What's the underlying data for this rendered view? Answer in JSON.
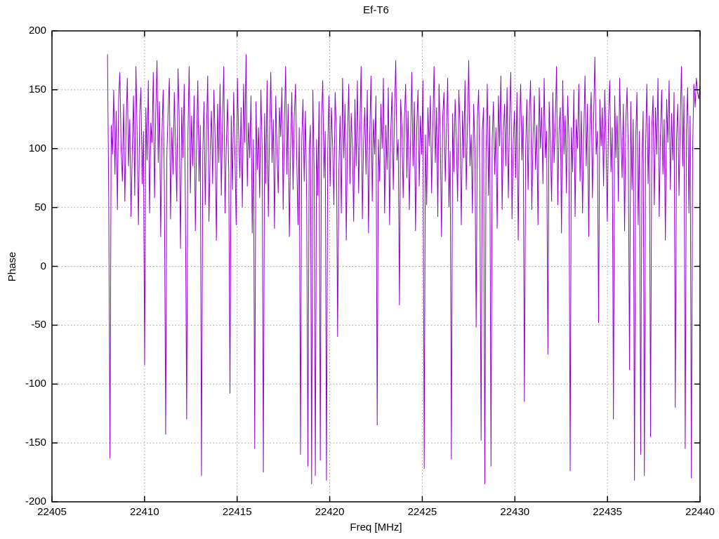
{
  "page": {
    "background": "#ffffff"
  },
  "chart_data": {
    "type": "line",
    "title": "Ef-T6",
    "xlabel": "Freq [MHz]",
    "ylabel": "Phase",
    "xlim": [
      22405,
      22440
    ],
    "ylim": [
      -200,
      200
    ],
    "xticks": [
      22405,
      22410,
      22415,
      22420,
      22425,
      22430,
      22435,
      22440
    ],
    "yticks": [
      -200,
      -150,
      -100,
      -50,
      0,
      50,
      100,
      150,
      200
    ],
    "grid": "dotted",
    "grid_color": "#9e9e9e",
    "border_color": "#000000",
    "legend": "none",
    "line_color": "#9400d3",
    "series": [
      {
        "name": "phase",
        "x_start": 22408.0,
        "x_end": 22440.0,
        "values": [
          180,
          55,
          -163,
          120,
          95,
          150,
          78,
          132,
          48,
          142,
          165,
          100,
          72,
          138,
          55,
          118,
          160,
          85,
          125,
          42,
          98,
          145,
          60,
          170,
          110,
          35,
          128,
          152,
          70,
          115,
          -84,
          135,
          90,
          158,
          45,
          122,
          105,
          165,
          58,
          130,
          175,
          88,
          140,
          25,
          112,
          150,
          65,
          -143,
          95,
          132,
          160,
          40,
          118,
          78,
          148,
          102,
          55,
          168,
          125,
          15,
          135,
          92,
          155,
          48,
          -130,
          110,
          170,
          62,
          128,
          85,
          145,
          30,
          105,
          158,
          72,
          120,
          -178,
          95,
          140,
          52,
          115,
          162,
          38,
          98,
          132,
          70,
          150,
          108,
          22,
          138,
          88,
          155,
          60,
          125,
          170,
          45,
          102,
          142,
          80,
          -108,
          128,
          65,
          148,
          95,
          35,
          160,
          112,
          75,
          135,
          50,
          155,
          105,
          180,
          68,
          122,
          92,
          145,
          28,
          108,
          -155,
          140,
          82,
          118,
          58,
          150,
          100,
          -175,
          130,
          70,
          158,
          42,
          115,
          165,
          88,
          125,
          32,
          145,
          98,
          62,
          135,
          110,
          152,
          48,
          122,
          170,
          78,
          138,
          25,
          100,
          148,
          65,
          128,
          155,
          90,
          35,
          118,
          -160,
          105,
          142,
          72,
          132,
          55,
          -170,
          95,
          120,
          -185,
          150,
          85,
          -178,
          108,
          60,
          140,
          -165,
          125,
          158,
          75,
          115,
          -182,
          98,
          145,
          68,
          135,
          102,
          52,
          148,
          115,
          -60,
          80,
          128,
          45,
          160,
          92,
          138,
          22,
          110,
          155,
          70,
          130,
          100,
          38,
          142,
          85,
          158,
          62,
          118,
          170,
          40,
          105,
          135,
          78,
          150,
          28,
          112,
          162,
          55,
          125,
          95,
          145,
          -135,
          108,
          72,
          138,
          100,
          160,
          45,
          120,
          82,
          152,
          35,
          115,
          148,
          65,
          130,
          175,
          90,
          108,
          -33,
          142,
          118,
          58,
          125,
          155,
          75,
          132,
          48,
          108,
          165,
          85,
          140,
          30,
          118,
          150,
          68,
          128,
          95,
          158,
          -172,
          112,
          52,
          135,
          102,
          145,
          62,
          120,
          170,
          88,
          135,
          42,
          155,
          110,
          25,
          128,
          148,
          72,
          115,
          160,
          50,
          98,
          -164,
          130,
          80,
          142,
          108,
          55,
          150,
          118,
          35,
          132,
          92,
          158,
          65,
          122,
          175,
          85,
          112,
          45,
          138,
          100,
          -52,
          125,
          150,
          70,
          -148,
          115,
          135,
          -185,
          95,
          155,
          60,
          128,
          -170,
          108,
          140,
          78,
          118,
          32,
          145,
          102,
          162,
          48,
          112,
          138,
          85,
          152,
          58,
          125,
          165,
          40,
          105,
          132,
          75,
          148,
          22,
          118,
          155,
          90,
          128,
          -115,
          98,
          142,
          65,
          130,
          158,
          48,
          110,
          145,
          82,
          120,
          35,
          152,
          100,
          135,
          70,
          160,
          92,
          115,
          -75,
          140,
          105,
          55,
          148,
          88,
          122,
          170,
          52,
          115,
          135,
          28,
          158,
          95,
          128,
          62,
          145,
          108,
          -174,
          118,
          80,
          150,
          42,
          125,
          100,
          155,
          72,
          132,
          45,
          112,
          162,
          85,
          138,
          25,
          120,
          148,
          58,
          128,
          178,
          95,
          115,
          -48,
          142,
          102,
          135,
          68,
          150,
          105,
          38,
          125,
          158,
          80,
          118,
          -130,
          145,
          92,
          128,
          55,
          160,
          110,
          75,
          138,
          30,
          122,
          152,
          98,
          -88,
          140,
          65,
          125,
          -182,
          108,
          148,
          35,
          115,
          -160,
          88,
          132,
          -178,
          102,
          155,
          70,
          128,
          -145,
          118,
          145,
          52,
          135,
          95,
          160,
          42,
          112,
          150,
          78,
          125,
          22,
          142,
          105,
          158,
          65,
          130,
          90,
          148,
          -120,
          108,
          138,
          60,
          125,
          170,
          85,
          145,
          -155,
          115,
          152,
          45,
          128,
          -180,
          98,
          155,
          135,
          160,
          148,
          142,
          155
        ]
      }
    ]
  }
}
